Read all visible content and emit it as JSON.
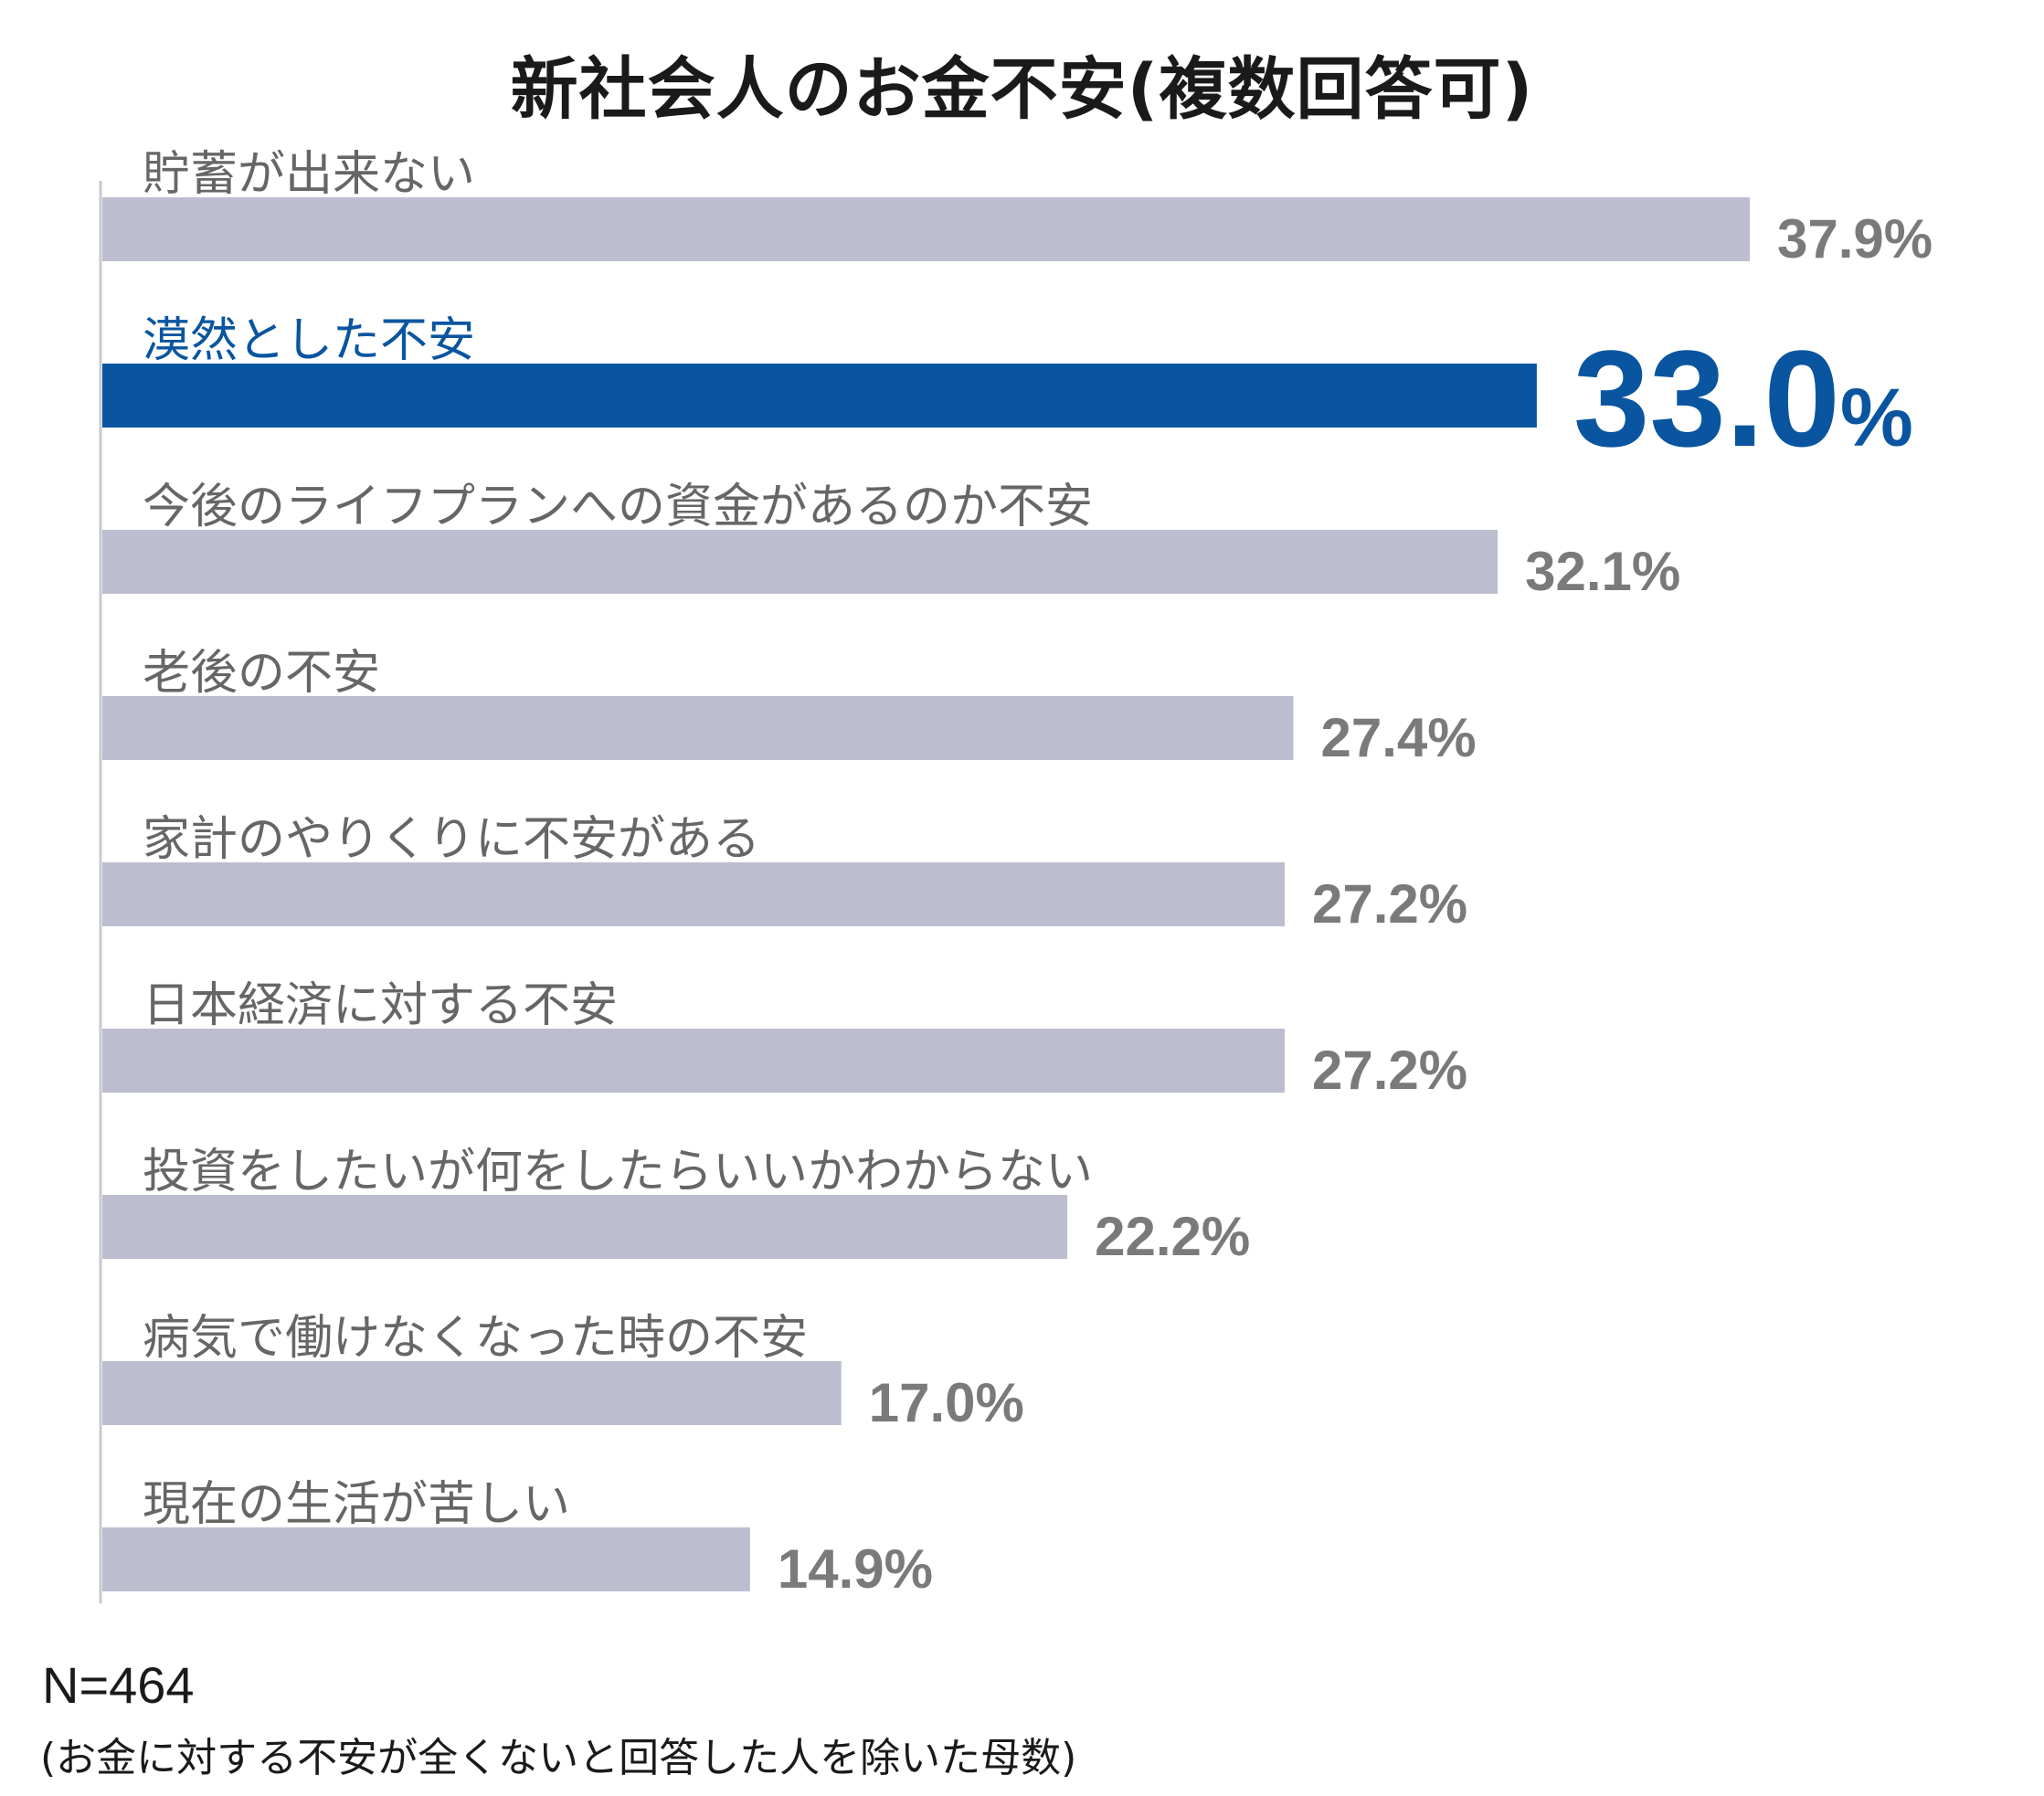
{
  "chart_data": {
    "type": "bar",
    "orientation": "horizontal",
    "title": "新社会人のお金不安(複数回答可)",
    "categories": [
      "貯蓄が出来ない",
      "漠然とした不安",
      "今後のライフプランへの資金があるのか不安",
      "老後の不安",
      "家計のやりくりに不安がある",
      "日本経済に対する不安",
      "投資をしたいが何をしたらいいかわからない",
      "病気で働けなくなった時の不安",
      "現在の生活が苦しい"
    ],
    "values": [
      37.9,
      33.0,
      32.1,
      27.4,
      27.2,
      27.2,
      22.2,
      17.0,
      14.9
    ],
    "value_labels": [
      "37.9%",
      "33.0",
      "32.1%",
      "27.4%",
      "27.2%",
      "27.2%",
      "22.2%",
      "17.0%",
      "14.9%"
    ],
    "highlight_index": 1,
    "highlight_suffix": "%",
    "unit": "%",
    "xlim": [
      0,
      37.9
    ],
    "grid": false,
    "colors": {
      "bar": "#bcbdcf",
      "highlight": "#0a55a0",
      "label": "#666666",
      "value": "#7a7a7a",
      "axis": "#c8c8d0"
    }
  },
  "footnote": {
    "n": "N=464",
    "note": "(お金に対する不安が全くないと回答した人を除いた母数)"
  }
}
